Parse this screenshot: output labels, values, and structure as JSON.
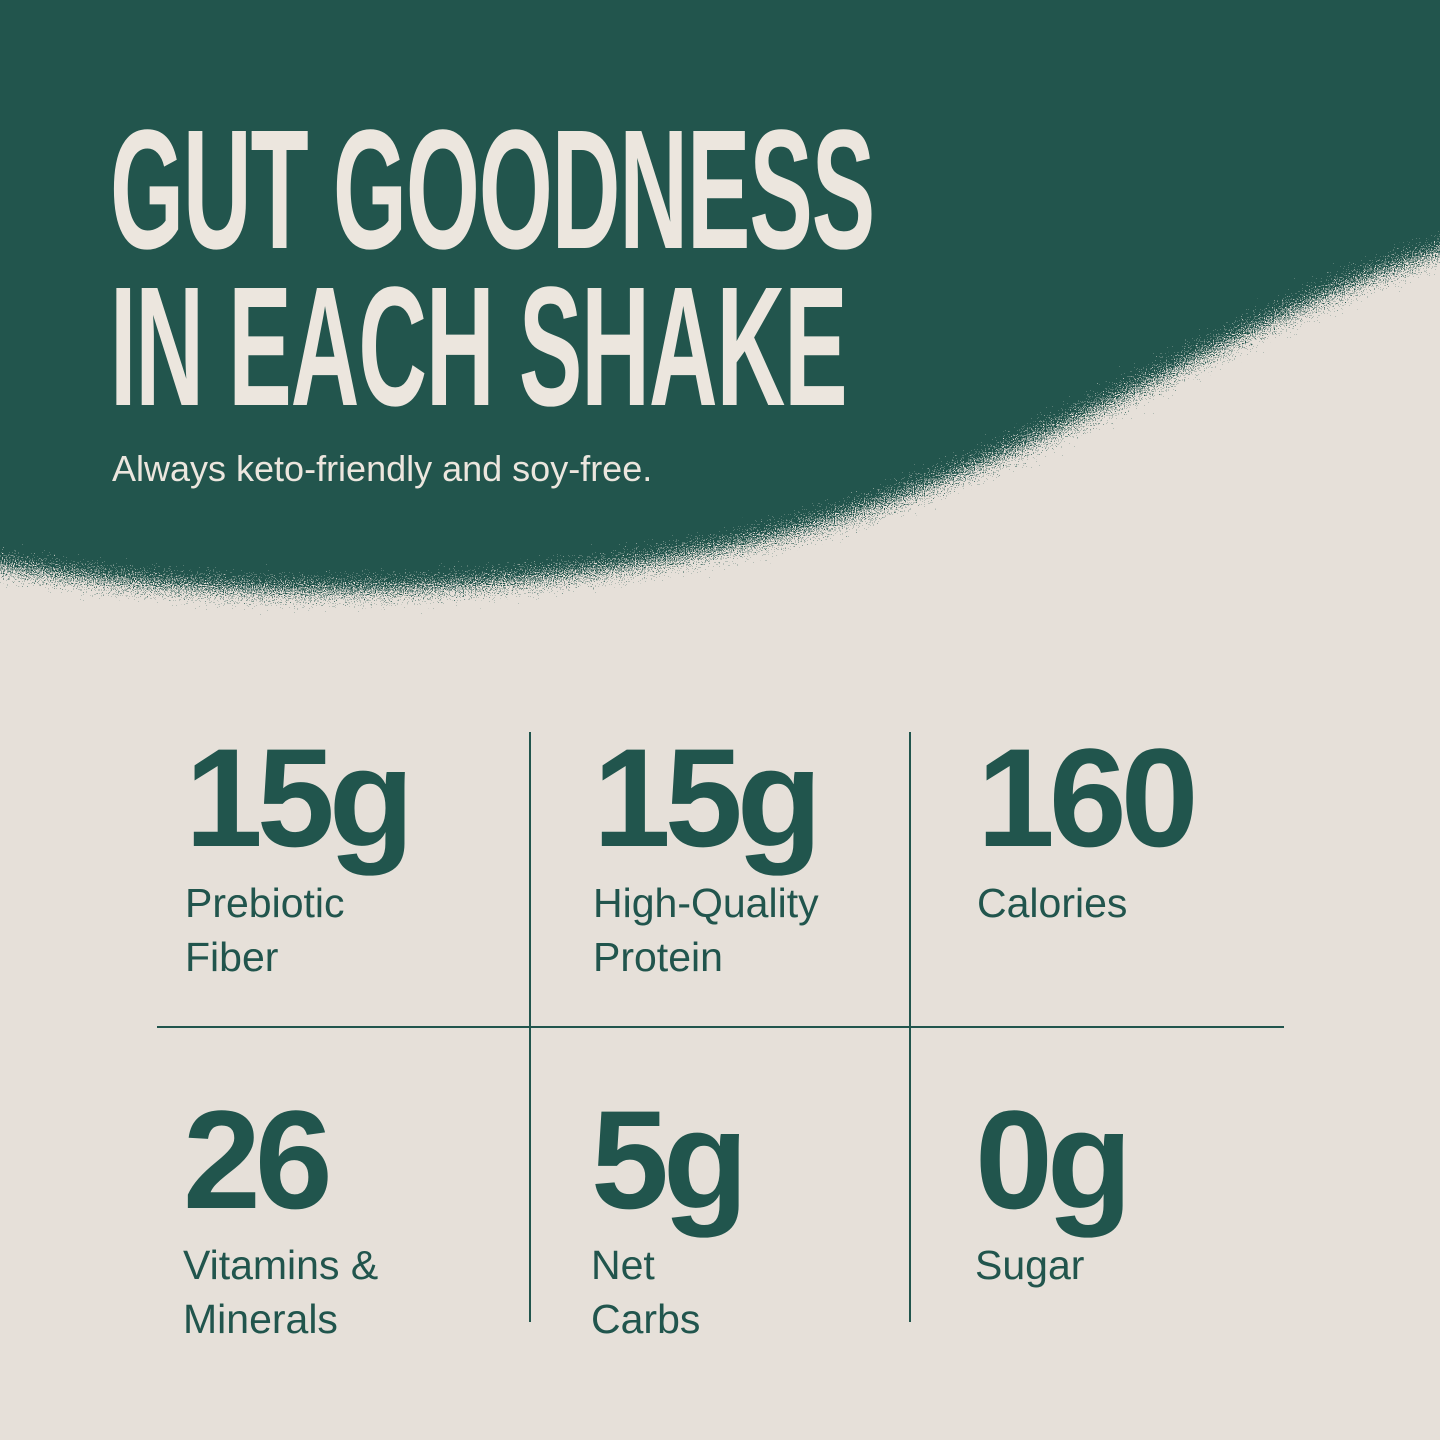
{
  "colors": {
    "brand_green": "#21554d",
    "background": "#e6e0d9",
    "headline": "#ece6de"
  },
  "headline": {
    "line1": "GUT GOODNESS",
    "line2": "IN EACH SHAKE"
  },
  "subtitle": "Always keto-friendly and soy-free.",
  "stats": [
    {
      "value": "15g",
      "label": "Prebiotic\nFiber"
    },
    {
      "value": "15g",
      "label": "High-Quality\nProtein"
    },
    {
      "value": "160",
      "label": "Calories"
    },
    {
      "value": "26",
      "label": "Vitamins &\nMinerals"
    },
    {
      "value": "5g",
      "label": "Net\nCarbs"
    },
    {
      "value": "0g",
      "label": "Sugar"
    }
  ]
}
